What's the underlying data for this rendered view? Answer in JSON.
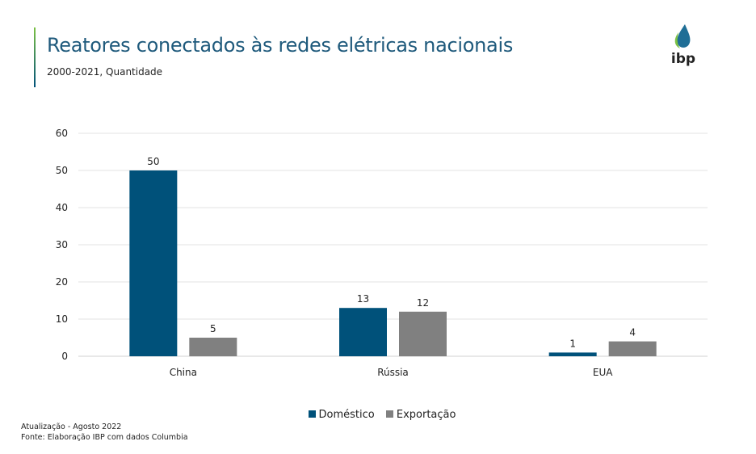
{
  "header": {
    "title": "Reatores conectados às redes elétricas nacionais",
    "subtitle": "2000-2021, Quantidade",
    "logo_text": "ibp"
  },
  "footer": {
    "update": "Atualização - Agosto 2022",
    "source": "Fonte: Elaboração IBP com dados Columbia"
  },
  "chart_data": {
    "type": "bar",
    "title": "Reatores conectados às redes elétricas nacionais",
    "categories": [
      "China",
      "Rússia",
      "EUA"
    ],
    "series": [
      {
        "name": "Doméstico",
        "values": [
          50,
          13,
          1
        ],
        "color": "#00517a"
      },
      {
        "name": "Exportação",
        "values": [
          5,
          12,
          4
        ],
        "color": "#808080"
      }
    ],
    "ylim": [
      0,
      60
    ],
    "yticks": [
      "0",
      "10",
      "20",
      "30",
      "40",
      "50",
      "60"
    ],
    "grid": true,
    "legend": "bottom",
    "xlabel": "",
    "ylabel": ""
  }
}
